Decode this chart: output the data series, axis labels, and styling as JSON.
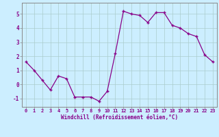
{
  "x": [
    0,
    1,
    2,
    3,
    4,
    5,
    6,
    7,
    8,
    9,
    10,
    11,
    12,
    13,
    14,
    15,
    16,
    17,
    18,
    19,
    20,
    21,
    22,
    23
  ],
  "y": [
    1.6,
    1.0,
    0.3,
    -0.4,
    0.6,
    0.4,
    -0.9,
    -0.9,
    -0.9,
    -1.2,
    -0.5,
    2.2,
    5.2,
    5.0,
    4.9,
    4.4,
    5.1,
    5.1,
    4.2,
    4.0,
    3.6,
    3.4,
    2.1,
    1.6
  ],
  "line_color": "#880088",
  "marker": "+",
  "bg_color": "#cceeff",
  "grid_color": "#aacccc",
  "xlabel": "Windchill (Refroidissement éolien,°C)",
  "xlabel_color": "#880088",
  "xlim": [
    -0.5,
    23.5
  ],
  "ylim": [
    -1.6,
    5.8
  ],
  "xtick_labels": [
    "0",
    "1",
    "2",
    "3",
    "4",
    "5",
    "6",
    "7",
    "8",
    "9",
    "10",
    "11",
    "12",
    "13",
    "14",
    "15",
    "16",
    "17",
    "18",
    "19",
    "20",
    "21",
    "22",
    "23"
  ],
  "ytick_values": [
    -1,
    0,
    1,
    2,
    3,
    4,
    5
  ],
  "figsize": [
    3.2,
    2.0
  ],
  "dpi": 100
}
